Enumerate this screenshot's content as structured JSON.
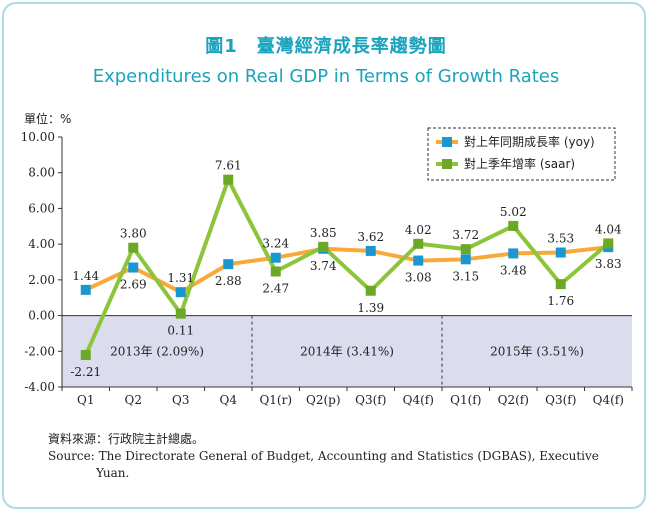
{
  "title_zh": "圖1　臺灣經濟成長率趨勢圖",
  "title_en": "Expenditures on Real GDP in Terms of Growth Rates",
  "unit_label": "單位：%",
  "source_zh": "資料來源：行政院主計總處。",
  "source_en_line1": "Source: The Directorate General of Budget, Accounting and Statistics (DGBAS), Executive",
  "source_en_line2": "Yuan.",
  "colors": {
    "yoy": "#f8a93a",
    "saar": "#8cc43a",
    "yoy_marker": "#1a97d1",
    "saar_marker": "#6aa826",
    "shade": "#dcdcef"
  },
  "chart_data": {
    "type": "line",
    "categories": [
      "Q1",
      "Q2",
      "Q3",
      "Q4",
      "Q1(r)",
      "Q2(p)",
      "Q3(f)",
      "Q4(f)",
      "Q1(f)",
      "Q2(f)",
      "Q3(f)",
      "Q4(f)"
    ],
    "series": [
      {
        "name": "對上年同期成長率 (yoy)",
        "key": "yoy",
        "values": [
          1.44,
          2.69,
          1.31,
          2.88,
          3.24,
          3.74,
          3.62,
          3.08,
          3.15,
          3.48,
          3.53,
          3.83
        ]
      },
      {
        "name": "對上季年增率 (saar)",
        "key": "saar",
        "values": [
          -2.21,
          3.8,
          0.11,
          7.61,
          2.47,
          3.85,
          1.39,
          4.02,
          3.72,
          5.02,
          1.76,
          4.04
        ]
      }
    ],
    "yticks": [
      "10.00",
      "8.00",
      "6.00",
      "4.00",
      "2.00",
      "0.00",
      "-2.00",
      "-4.00"
    ],
    "ylim": [
      -4,
      10
    ],
    "year_groups": [
      {
        "label": "2013年 (2.09%)",
        "start": 0,
        "end": 3
      },
      {
        "label": "2014年 (3.41%)",
        "start": 4,
        "end": 7
      },
      {
        "label": "2015年 (3.51%)",
        "start": 8,
        "end": 11
      }
    ],
    "legend_position": "top-right"
  }
}
